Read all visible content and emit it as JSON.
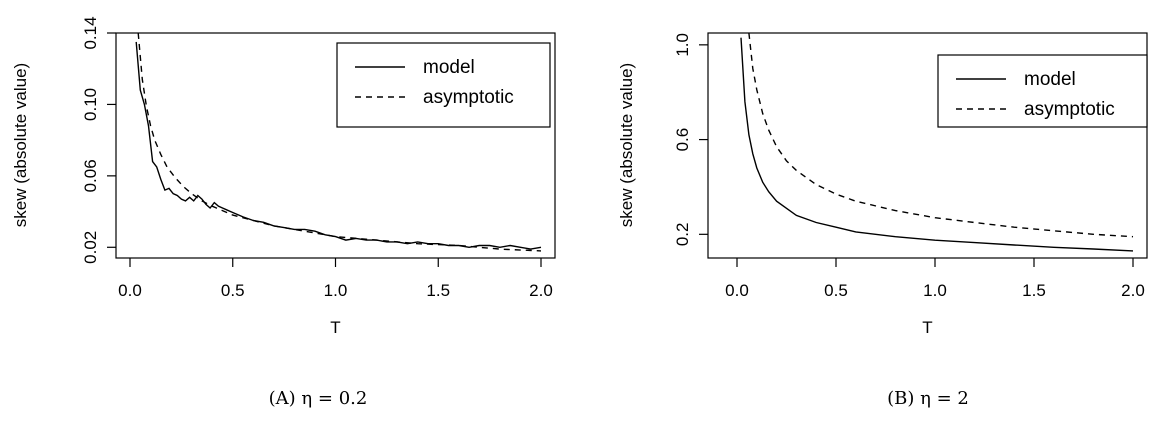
{
  "chart_data": [
    {
      "type": "line",
      "caption": "(A) η = 0.2",
      "xlabel": "T",
      "ylabel": "skew (absolute value)",
      "xlim": [
        0.0,
        2.0
      ],
      "ylim": [
        0.014,
        0.14
      ],
      "xticks": [
        "0.0",
        "0.5",
        "1.0",
        "1.5",
        "2.0"
      ],
      "yticks": [
        "0.02",
        "0.06",
        "0.10",
        "0.14"
      ],
      "legend_position": "top-right",
      "grid": false,
      "series": [
        {
          "name": "model",
          "style": "solid",
          "x": [
            0.03,
            0.05,
            0.07,
            0.09,
            0.11,
            0.13,
            0.15,
            0.17,
            0.19,
            0.21,
            0.23,
            0.25,
            0.27,
            0.29,
            0.31,
            0.33,
            0.35,
            0.37,
            0.39,
            0.41,
            0.43,
            0.45,
            0.47,
            0.49,
            0.51,
            0.55,
            0.6,
            0.65,
            0.7,
            0.75,
            0.8,
            0.85,
            0.9,
            0.95,
            1.0,
            1.05,
            1.1,
            1.15,
            1.2,
            1.25,
            1.3,
            1.35,
            1.4,
            1.45,
            1.5,
            1.55,
            1.6,
            1.65,
            1.7,
            1.75,
            1.8,
            1.85,
            1.9,
            1.95,
            2.0
          ],
          "y": [
            0.135,
            0.108,
            0.1,
            0.088,
            0.068,
            0.065,
            0.058,
            0.052,
            0.053,
            0.05,
            0.049,
            0.047,
            0.046,
            0.048,
            0.046,
            0.049,
            0.047,
            0.044,
            0.042,
            0.045,
            0.043,
            0.042,
            0.041,
            0.04,
            0.039,
            0.037,
            0.035,
            0.034,
            0.032,
            0.031,
            0.03,
            0.03,
            0.029,
            0.027,
            0.026,
            0.024,
            0.025,
            0.024,
            0.024,
            0.023,
            0.023,
            0.022,
            0.023,
            0.022,
            0.022,
            0.021,
            0.021,
            0.02,
            0.021,
            0.021,
            0.02,
            0.021,
            0.02,
            0.019,
            0.02
          ]
        },
        {
          "name": "asymptotic",
          "style": "dashed",
          "x": [
            0.04,
            0.06,
            0.08,
            0.1,
            0.12,
            0.15,
            0.18,
            0.22,
            0.26,
            0.3,
            0.35,
            0.4,
            0.5,
            0.6,
            0.7,
            0.8,
            0.9,
            1.0,
            1.2,
            1.4,
            1.6,
            1.8,
            2.0
          ],
          "y": [
            0.14,
            0.114,
            0.099,
            0.088,
            0.08,
            0.072,
            0.065,
            0.059,
            0.054,
            0.05,
            0.046,
            0.043,
            0.038,
            0.035,
            0.032,
            0.03,
            0.028,
            0.026,
            0.024,
            0.022,
            0.021,
            0.019,
            0.018
          ]
        }
      ]
    },
    {
      "type": "line",
      "caption": "(B) η = 2",
      "xlabel": "T",
      "ylabel": "skew (absolute value)",
      "xlim": [
        0.0,
        2.0
      ],
      "ylim": [
        0.1,
        1.05
      ],
      "xticks": [
        "0.0",
        "0.5",
        "1.0",
        "1.5",
        "2.0"
      ],
      "yticks": [
        "0.2",
        "0.6",
        "1.0"
      ],
      "legend_position": "top-right",
      "grid": false,
      "series": [
        {
          "name": "model",
          "style": "solid",
          "x": [
            0.02,
            0.04,
            0.06,
            0.08,
            0.1,
            0.13,
            0.16,
            0.2,
            0.25,
            0.3,
            0.4,
            0.5,
            0.6,
            0.8,
            1.0,
            1.2,
            1.4,
            1.6,
            1.8,
            2.0
          ],
          "y": [
            1.03,
            0.76,
            0.62,
            0.54,
            0.48,
            0.42,
            0.38,
            0.34,
            0.31,
            0.28,
            0.25,
            0.23,
            0.21,
            0.19,
            0.175,
            0.165,
            0.155,
            0.145,
            0.138,
            0.13
          ],
          "legend_label": "model"
        },
        {
          "name": "asymptotic",
          "style": "dashed",
          "x": [
            0.06,
            0.08,
            0.1,
            0.13,
            0.16,
            0.2,
            0.25,
            0.3,
            0.4,
            0.5,
            0.6,
            0.8,
            1.0,
            1.2,
            1.4,
            1.6,
            1.8,
            2.0
          ],
          "y": [
            1.05,
            0.9,
            0.81,
            0.71,
            0.64,
            0.57,
            0.51,
            0.47,
            0.41,
            0.37,
            0.34,
            0.3,
            0.27,
            0.25,
            0.23,
            0.215,
            0.2,
            0.19
          ]
        }
      ]
    }
  ]
}
